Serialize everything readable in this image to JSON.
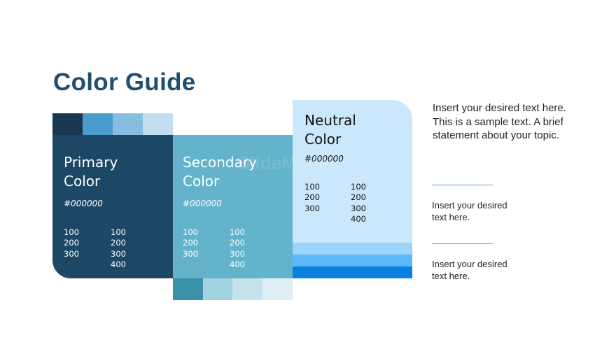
{
  "title": "Color Guide",
  "watermark": "SlideModel",
  "colors": {
    "primary": "#1c4866",
    "primary_swatches": [
      "#17384f",
      "#4a9ccf",
      "#86bde0",
      "#c3ddf0"
    ],
    "secondary": "#62b3cb",
    "secondary_swatches": [
      "#3b91ab",
      "#a2d3e2",
      "#c4e3ec",
      "#dfeff5"
    ],
    "neutral": "#cae7fb",
    "neutral_stripes": [
      "#9bd3fa",
      "#5cb9f7",
      "#0a80e0"
    ]
  },
  "cards": [
    {
      "name_line1": "Primary",
      "name_line2": "Color",
      "hex": "#000000",
      "col1": "100\n200\n300",
      "col2": "100\n200\n300\n400"
    },
    {
      "name_line1": "Secondary",
      "name_line2": "Color",
      "hex": "#000000",
      "col1": "100\n200\n300",
      "col2": "100\n200\n300\n400"
    },
    {
      "name_line1": "Neutral",
      "name_line2": "Color",
      "hex": "#000000",
      "col1": "100\n200\n300",
      "col2": "100\n200\n300\n400"
    }
  ],
  "side": {
    "main_text": "Insert your desired text here. This is a sample text. A brief statement about your topic.",
    "text2": "Insert your desired text here.",
    "text3": "Insert your desired text here."
  }
}
